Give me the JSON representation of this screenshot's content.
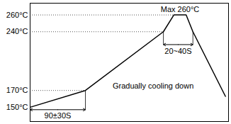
{
  "chart_data": {
    "type": "line",
    "x": [
      0,
      90,
      217,
      234,
      254,
      265,
      318
    ],
    "values": [
      150,
      170,
      240,
      260,
      260,
      240,
      163
    ],
    "color": "#000000",
    "xlim": [
      0,
      323
    ],
    "ylim": [
      133,
      274
    ],
    "yticks": [
      {
        "value": 150,
        "label": "150°C"
      },
      {
        "value": 170,
        "label": "170°C"
      },
      {
        "value": 240,
        "label": "240°C"
      },
      {
        "value": 260,
        "label": "260°C"
      }
    ],
    "tick_labels": "y",
    "annotations": [
      "Max 260°C",
      "90±30S",
      "20~40S",
      "Gradually cooling down"
    ]
  }
}
